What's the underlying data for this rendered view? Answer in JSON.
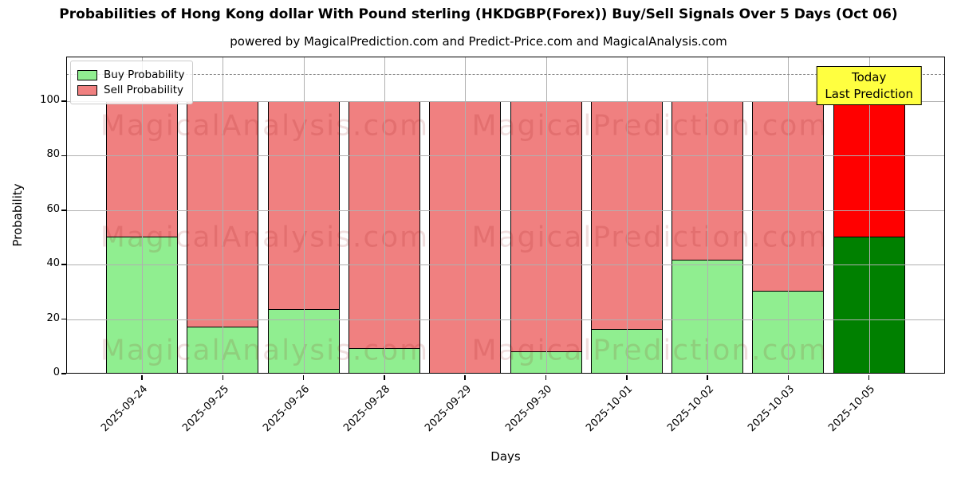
{
  "figure": {
    "title": "Probabilities of Hong Kong dollar With Pound sterling (HKDGBP(Forex)) Buy/Sell Signals Over 5 Days (Oct 06)",
    "subtitle": "powered by MagicalPrediction.com and Predict-Price.com and MagicalAnalysis.com"
  },
  "chart_data": {
    "type": "bar",
    "stacked": true,
    "title": "Probabilities of Hong Kong dollar With Pound sterling (HKDGBP(Forex)) Buy/Sell Signals Over 5 Days (Oct 06)",
    "subtitle": "powered by MagicalPrediction.com and Predict-Price.com and MagicalAnalysis.com",
    "xlabel": "Days",
    "ylabel": "Probability",
    "ylim": [
      0,
      116
    ],
    "yticks": [
      0,
      20,
      40,
      60,
      80,
      100
    ],
    "grid": true,
    "grid_on_top": true,
    "dashed_threshold_y": 110,
    "categories": [
      "2025-09-24",
      "2025-09-25",
      "2025-09-26",
      "2025-09-28",
      "2025-09-29",
      "2025-09-30",
      "2025-10-01",
      "2025-10-02",
      "2025-10-03",
      "2025-10-05"
    ],
    "series": [
      {
        "name": "Buy Probability",
        "color": "#90EE90",
        "values": [
          50,
          17,
          23.5,
          9,
          0,
          8,
          16,
          41.5,
          30,
          50
        ]
      },
      {
        "name": "Sell Probability",
        "color": "#F08080",
        "values": [
          50,
          83,
          76.5,
          91,
          100,
          92,
          84,
          58.5,
          70,
          50
        ]
      }
    ],
    "legend_position": "upper left",
    "today_bar": {
      "index": 9,
      "buy_color": "#008000",
      "sell_color": "#FF0000",
      "label_lines": [
        "Today",
        "Last Prediction"
      ],
      "label_bg": "#FFFF40"
    },
    "watermarks": {
      "texts": [
        "MagicalAnalysis.com",
        "MagicalPrediction.com"
      ],
      "color": "rgba(139,0,0,0.13)"
    }
  }
}
